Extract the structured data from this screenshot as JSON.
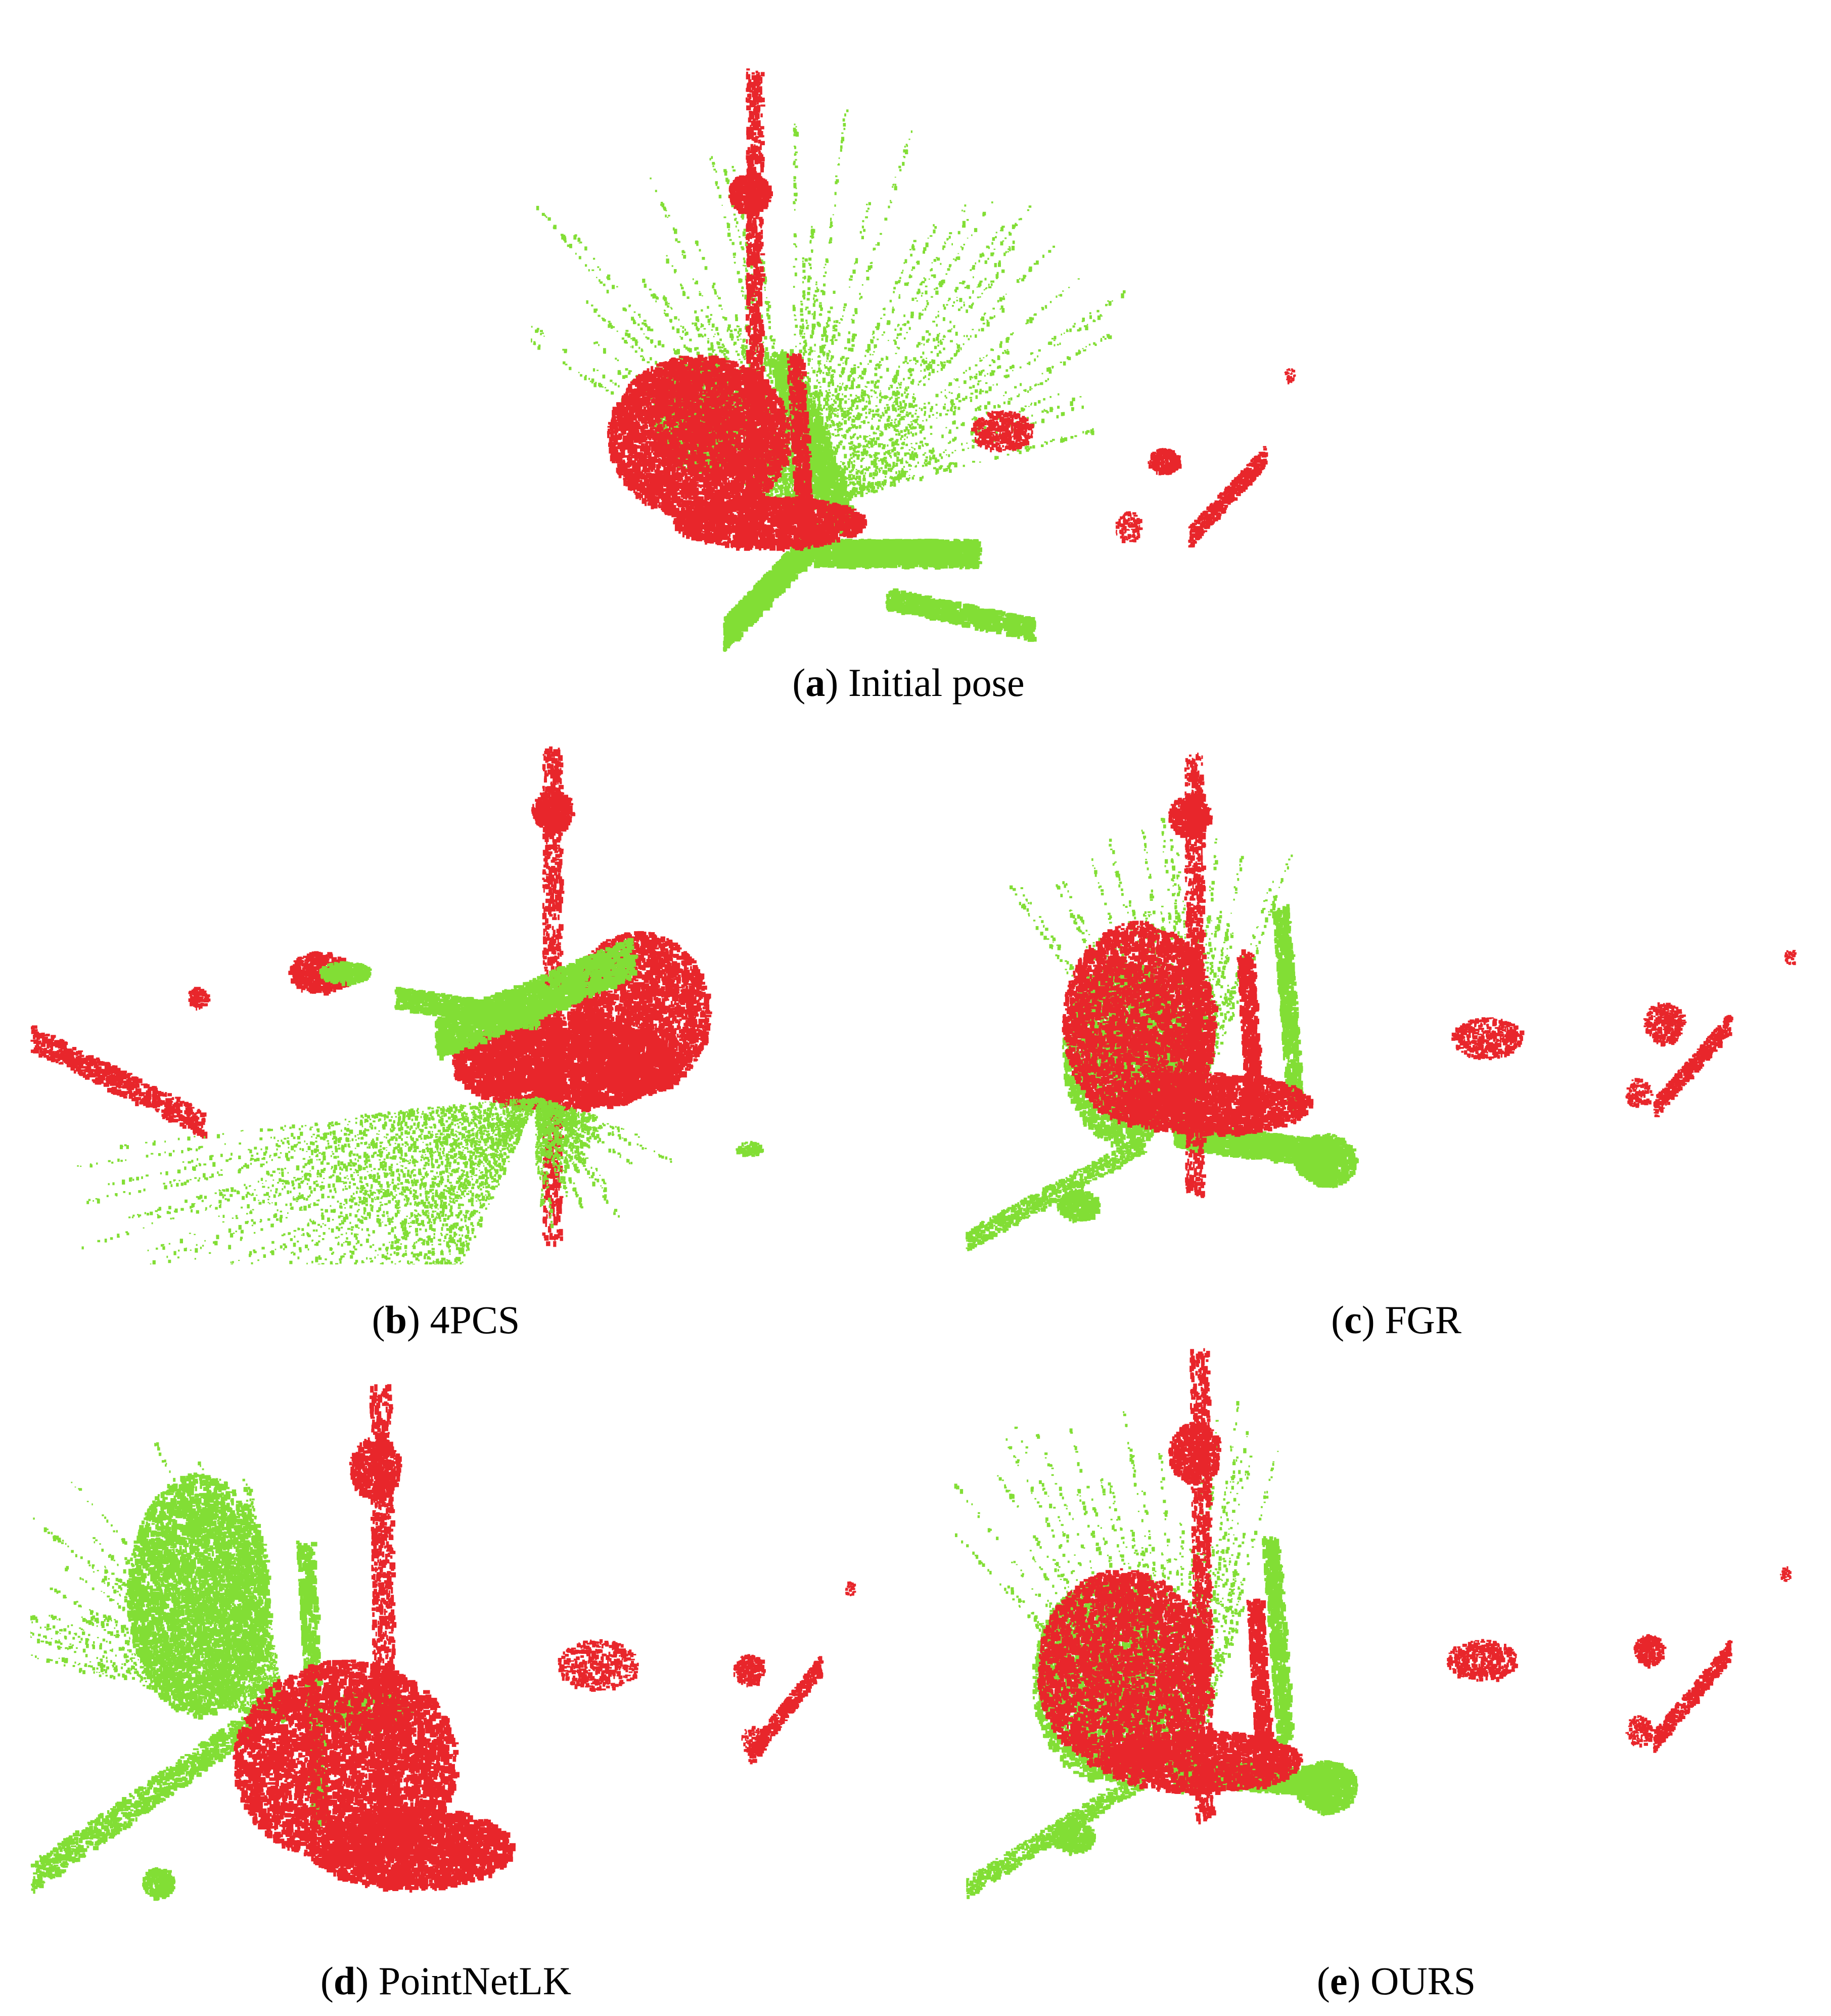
{
  "figure": {
    "colors": {
      "source": "#e8262b",
      "target": "#82de35"
    },
    "panels": [
      {
        "id": "a",
        "label": "a",
        "title": "Initial pose"
      },
      {
        "id": "b",
        "label": "b",
        "title": "4PCS"
      },
      {
        "id": "c",
        "label": "c",
        "title": "FGR"
      },
      {
        "id": "d",
        "label": "d",
        "title": "PointNetLK"
      },
      {
        "id": "e",
        "label": "e",
        "title": "OURS"
      }
    ]
  }
}
